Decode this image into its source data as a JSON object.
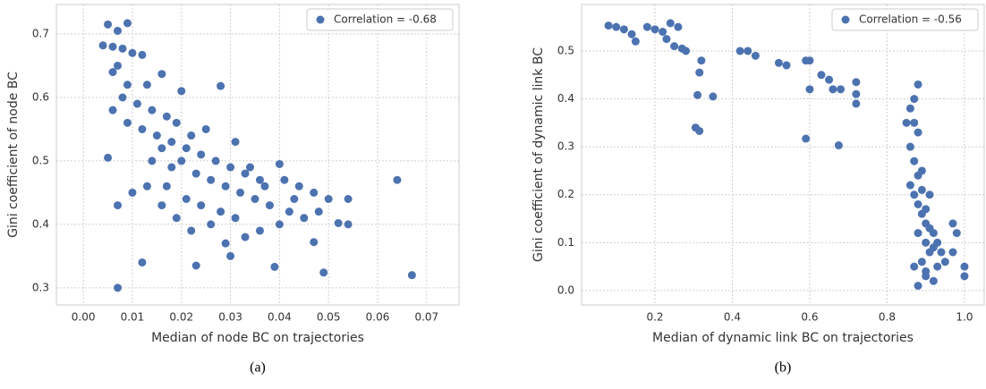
{
  "chart_data": [
    {
      "type": "scatter",
      "caption": "(a)",
      "x_label": "Median of node BC on trajectories",
      "y_label": "Gini coefficient of node BC",
      "xlim": [
        -0.0055,
        0.0766
      ],
      "ylim": [
        0.273,
        0.7465
      ],
      "xticks": [
        {
          "value": 0,
          "label": "0.00"
        },
        {
          "value": 0.01,
          "label": "0.01"
        },
        {
          "value": 0.02,
          "label": "0.02"
        },
        {
          "value": 0.03,
          "label": "0.03"
        },
        {
          "value": 0.04,
          "label": "0.04"
        },
        {
          "value": 0.05,
          "label": "0.05"
        },
        {
          "value": 0.06,
          "label": "0.06"
        },
        {
          "value": 0.07,
          "label": "0.07"
        }
      ],
      "yticks": [
        0.3,
        0.4,
        0.5,
        0.6,
        0.7
      ],
      "grid": true,
      "legend": "upper right",
      "series": [
        {
          "name": "Correlation = -0.68",
          "color": "#4c72b0",
          "x": [
            0.005,
            0.009,
            0.007,
            0.004,
            0.006,
            0.008,
            0.01,
            0.012,
            0.007,
            0.006,
            0.009,
            0.016,
            0.013,
            0.02,
            0.028,
            0.008,
            0.011,
            0.014,
            0.017,
            0.019,
            0.006,
            0.009,
            0.012,
            0.015,
            0.018,
            0.021,
            0.024,
            0.027,
            0.03,
            0.033,
            0.036,
            0.02,
            0.022,
            0.025,
            0.018,
            0.016,
            0.023,
            0.026,
            0.029,
            0.032,
            0.035,
            0.038,
            0.041,
            0.044,
            0.047,
            0.05,
            0.054,
            0.054,
            0.048,
            0.045,
            0.042,
            0.04,
            0.036,
            0.033,
            0.029,
            0.026,
            0.022,
            0.019,
            0.016,
            0.013,
            0.01,
            0.007,
            0.005,
            0.012,
            0.007,
            0.023,
            0.03,
            0.039,
            0.049,
            0.064,
            0.067,
            0.052,
            0.047,
            0.04,
            0.034,
            0.031,
            0.014,
            0.017,
            0.021,
            0.024,
            0.028,
            0.031,
            0.037,
            0.043
          ],
          "values": [
            0.715,
            0.717,
            0.705,
            0.682,
            0.68,
            0.677,
            0.67,
            0.667,
            0.65,
            0.64,
            0.62,
            0.637,
            0.62,
            0.61,
            0.618,
            0.6,
            0.59,
            0.58,
            0.57,
            0.56,
            0.58,
            0.56,
            0.55,
            0.54,
            0.53,
            0.52,
            0.51,
            0.5,
            0.49,
            0.48,
            0.47,
            0.5,
            0.54,
            0.55,
            0.49,
            0.52,
            0.48,
            0.47,
            0.46,
            0.45,
            0.44,
            0.43,
            0.47,
            0.46,
            0.45,
            0.44,
            0.44,
            0.4,
            0.42,
            0.41,
            0.42,
            0.4,
            0.39,
            0.38,
            0.37,
            0.4,
            0.39,
            0.41,
            0.43,
            0.46,
            0.45,
            0.43,
            0.505,
            0.34,
            0.3,
            0.335,
            0.35,
            0.333,
            0.324,
            0.47,
            0.32,
            0.402,
            0.372,
            0.495,
            0.49,
            0.53,
            0.5,
            0.46,
            0.44,
            0.43,
            0.42,
            0.41,
            0.46,
            0.44
          ]
        }
      ]
    },
    {
      "type": "scatter",
      "caption": "(b)",
      "x_label": "Median of dynamic link BC on trajectories",
      "y_label": "Gini coefficient of dynamic link BC",
      "xlim": [
        0.0104,
        1.051
      ],
      "ylim": [
        -0.03,
        0.597
      ],
      "xticks": [
        0.2,
        0.4,
        0.6,
        0.8,
        {
          "value": 1,
          "label": "1.0"
        }
      ],
      "yticks": [
        {
          "value": 0,
          "label": "0.0"
        },
        0.1,
        0.2,
        0.3,
        0.4,
        0.5
      ],
      "grid": true,
      "legend": "upper right",
      "series": [
        {
          "name": "Correlation = -0.56",
          "color": "#4c72b0",
          "x": [
            0.08,
            0.1,
            0.12,
            0.14,
            0.15,
            0.18,
            0.2,
            0.22,
            0.24,
            0.26,
            0.23,
            0.25,
            0.27,
            0.28,
            0.32,
            0.315,
            0.31,
            0.35,
            0.305,
            0.315,
            0.42,
            0.44,
            0.46,
            0.52,
            0.54,
            0.59,
            0.6,
            0.6,
            0.63,
            0.65,
            0.66,
            0.68,
            0.72,
            0.72,
            0.72,
            0.59,
            0.675,
            0.88,
            0.87,
            0.86,
            0.87,
            0.88,
            0.86,
            0.87,
            0.88,
            0.86,
            0.87,
            0.88,
            0.89,
            0.9,
            0.88,
            0.9,
            0.91,
            0.89,
            0.9,
            0.92,
            0.88,
            0.9,
            0.93,
            0.92,
            0.91,
            0.9,
            0.89,
            0.92,
            0.94,
            0.95,
            0.97,
            0.98,
            0.97,
            1.0,
            1.0,
            0.85,
            0.87,
            0.89,
            0.91,
            0.93
          ],
          "values": [
            0.553,
            0.55,
            0.545,
            0.535,
            0.52,
            0.55,
            0.545,
            0.54,
            0.558,
            0.55,
            0.525,
            0.51,
            0.505,
            0.5,
            0.48,
            0.455,
            0.408,
            0.405,
            0.34,
            0.333,
            0.5,
            0.5,
            0.49,
            0.475,
            0.47,
            0.48,
            0.48,
            0.42,
            0.45,
            0.44,
            0.42,
            0.42,
            0.435,
            0.41,
            0.39,
            0.317,
            0.303,
            0.43,
            0.4,
            0.38,
            0.35,
            0.33,
            0.3,
            0.27,
            0.24,
            0.22,
            0.2,
            0.18,
            0.16,
            0.14,
            0.12,
            0.1,
            0.08,
            0.06,
            0.04,
            0.02,
            0.01,
            0.03,
            0.05,
            0.09,
            0.13,
            0.17,
            0.21,
            0.12,
            0.08,
            0.06,
            0.14,
            0.12,
            0.08,
            0.05,
            0.03,
            0.35,
            0.05,
            0.25,
            0.2,
            0.1
          ]
        }
      ]
    }
  ]
}
